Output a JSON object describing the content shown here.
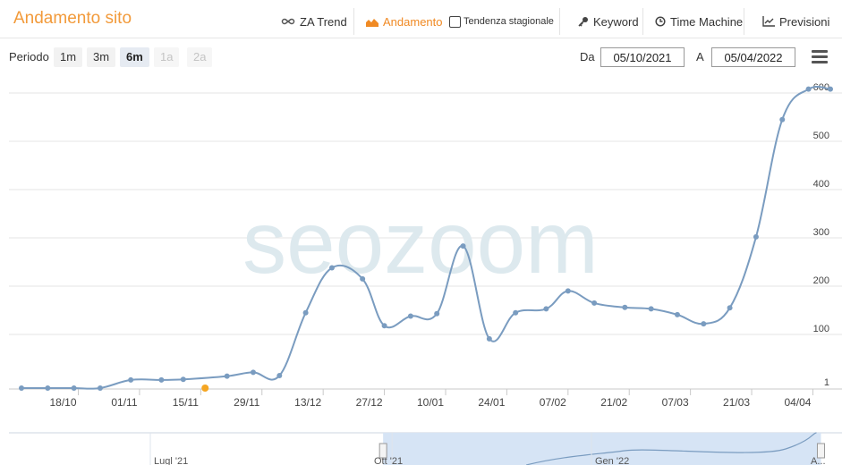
{
  "header": {
    "title": "Andamento sito",
    "tools": [
      {
        "name": "za-trend",
        "label": "ZA Trend",
        "icon": "infinity-icon"
      },
      {
        "name": "andamento",
        "label": "Andamento",
        "icon": "area-chart-icon",
        "active": true
      },
      {
        "name": "tendenza",
        "label": "Tendenza stagionale",
        "icon": "checkbox-icon"
      },
      {
        "name": "keyword",
        "label": "Keyword",
        "icon": "key-icon"
      },
      {
        "name": "time-machine",
        "label": "Time Machine",
        "icon": "clock-icon"
      },
      {
        "name": "previsioni",
        "label": "Previsioni",
        "icon": "line-chart-icon"
      }
    ],
    "active_color": "#f08a24"
  },
  "period": {
    "label": "Periodo",
    "buttons": [
      {
        "label": "1m",
        "state": "normal"
      },
      {
        "label": "3m",
        "state": "normal"
      },
      {
        "label": "6m",
        "state": "selected"
      },
      {
        "label": "1a",
        "state": "disabled"
      },
      {
        "label": "2a",
        "state": "disabled"
      }
    ]
  },
  "range": {
    "from_label": "Da",
    "from_value": "05/10/2021",
    "to_label": "A",
    "to_value": "05/04/2022"
  },
  "watermark": "seozoom",
  "chart_data": {
    "type": "line",
    "title": "",
    "xlabel": "",
    "ylabel": "",
    "series_color": "#7a9cc0",
    "highlight_color": "#f5a623",
    "grid": true,
    "y_axis_position": "right",
    "y_ticks": [
      1,
      100,
      200,
      300,
      400,
      500,
      600
    ],
    "x_ticks": [
      "18/10",
      "01/11",
      "15/11",
      "29/11",
      "13/12",
      "27/12",
      "10/01",
      "24/01",
      "07/02",
      "21/02",
      "07/03",
      "21/03",
      "04/04"
    ],
    "x_tick_days": [
      13,
      27,
      41,
      55,
      69,
      83,
      97,
      111,
      125,
      139,
      153,
      167,
      181
    ],
    "x_range_days": [
      0,
      185
    ],
    "ylim": [
      1,
      600
    ],
    "points": [
      {
        "day": 0,
        "y": 1
      },
      {
        "day": 6,
        "y": 1
      },
      {
        "day": 12,
        "y": 1
      },
      {
        "day": 18,
        "y": 1
      },
      {
        "day": 25,
        "y": 16
      },
      {
        "day": 32,
        "y": 16
      },
      {
        "day": 37,
        "y": 17
      },
      {
        "day": 42,
        "y": 1,
        "highlight": true
      },
      {
        "day": 47,
        "y": 23
      },
      {
        "day": 53,
        "y": 30
      },
      {
        "day": 59,
        "y": 24
      },
      {
        "day": 65,
        "y": 145
      },
      {
        "day": 71,
        "y": 238
      },
      {
        "day": 78,
        "y": 215
      },
      {
        "day": 83,
        "y": 118
      },
      {
        "day": 89,
        "y": 138
      },
      {
        "day": 95,
        "y": 143
      },
      {
        "day": 101,
        "y": 283
      },
      {
        "day": 107,
        "y": 92
      },
      {
        "day": 113,
        "y": 145
      },
      {
        "day": 120,
        "y": 153
      },
      {
        "day": 125,
        "y": 190
      },
      {
        "day": 131,
        "y": 165
      },
      {
        "day": 138,
        "y": 156
      },
      {
        "day": 144,
        "y": 153
      },
      {
        "day": 150,
        "y": 141
      },
      {
        "day": 156,
        "y": 122
      },
      {
        "day": 162,
        "y": 155
      },
      {
        "day": 168,
        "y": 302
      },
      {
        "day": 174,
        "y": 545
      },
      {
        "day": 180,
        "y": 608
      },
      {
        "day": 185,
        "y": 608
      }
    ]
  },
  "navigator": {
    "labels": [
      "Lugl '21",
      "Ott '21",
      "Gen '22",
      "A..."
    ],
    "selection_fraction": [
      0.455,
      0.975
    ]
  }
}
